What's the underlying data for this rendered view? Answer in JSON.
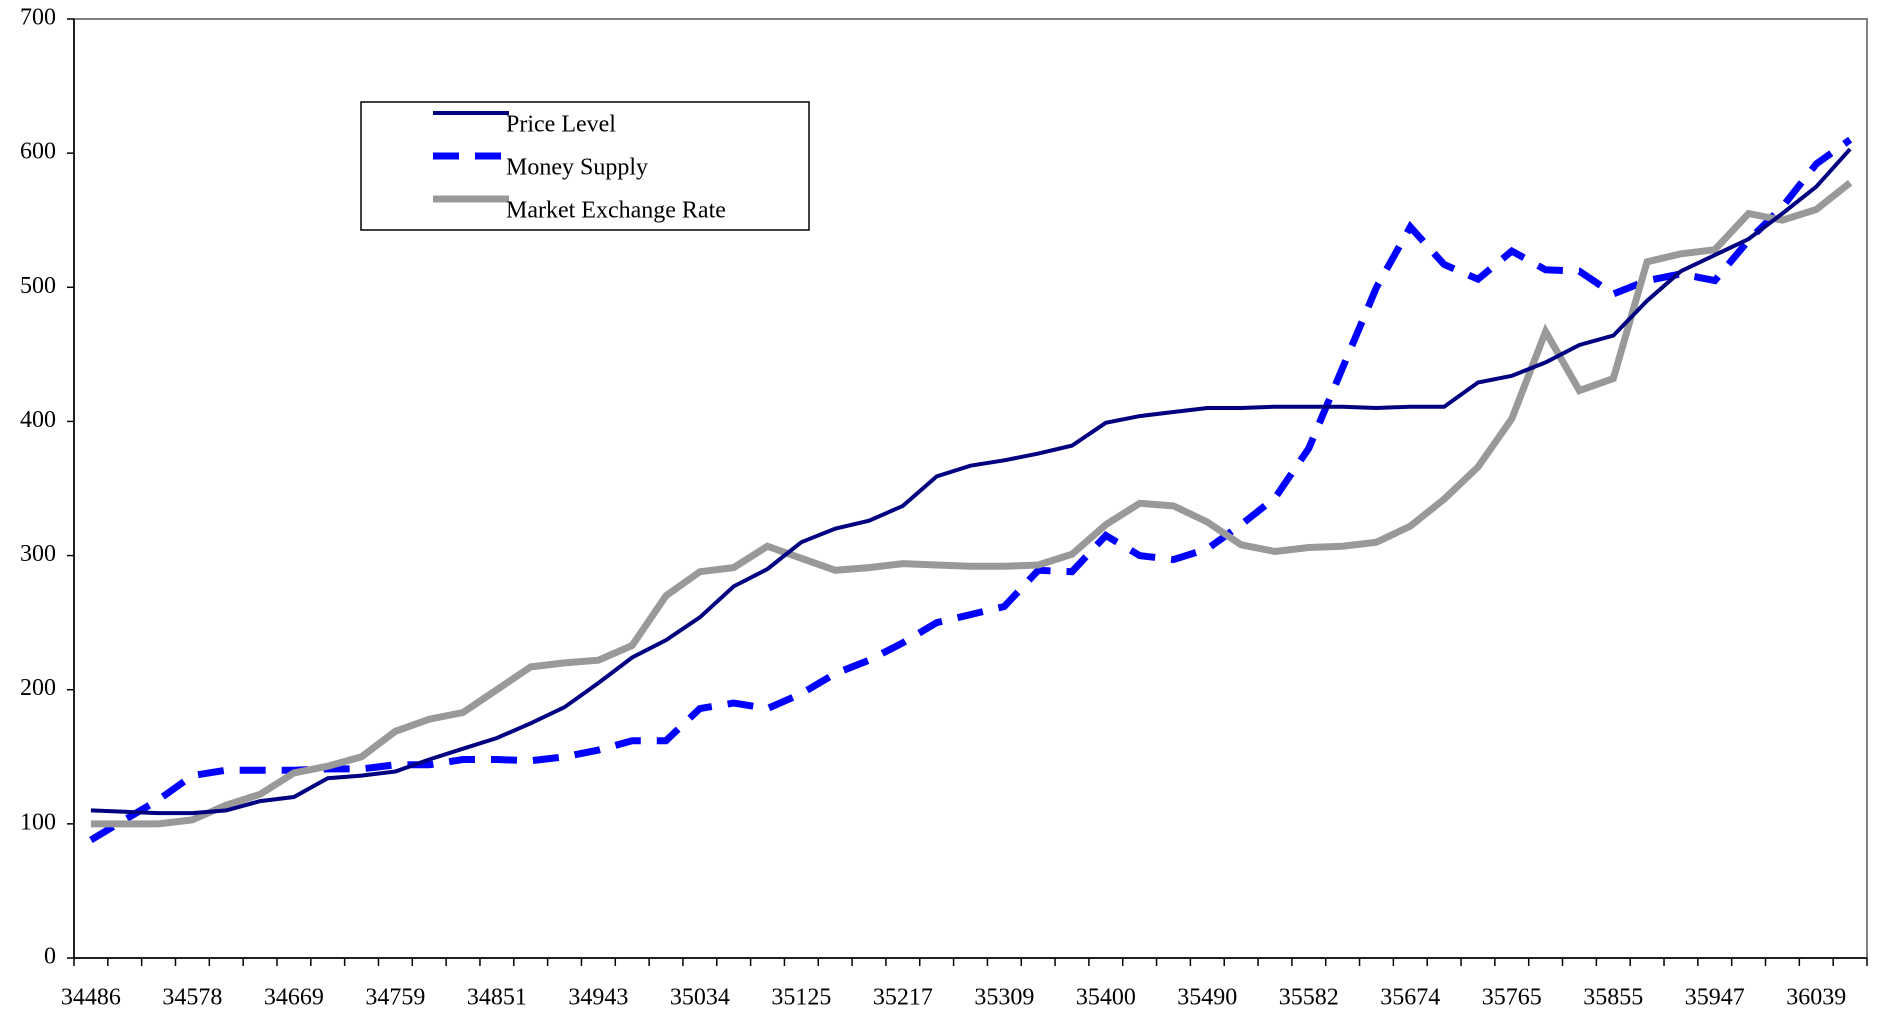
{
  "chart_data": {
    "type": "line",
    "categories": [
      "34486",
      null,
      null,
      "34578",
      null,
      null,
      "34669",
      null,
      null,
      "34759",
      null,
      null,
      "34851",
      null,
      null,
      "34943",
      null,
      null,
      "35034",
      null,
      null,
      "35125",
      null,
      null,
      "35217",
      null,
      null,
      "35309",
      null,
      null,
      "35400",
      null,
      null,
      "35490",
      null,
      null,
      "35582",
      null,
      null,
      "35674",
      null,
      null,
      "35765",
      null,
      null,
      "35855",
      null,
      null,
      "35947",
      null,
      null,
      "36039",
      null
    ],
    "series": [
      {
        "name": "Price Level",
        "color": "#000080",
        "style": "solid",
        "values": [
          110,
          109,
          108,
          108,
          110,
          117,
          120,
          134,
          136,
          139,
          148,
          156,
          164,
          175,
          187,
          205,
          224,
          237,
          254,
          277,
          290,
          310,
          320,
          326,
          337,
          359,
          367,
          371,
          376,
          382,
          399,
          404,
          407,
          410,
          410,
          411,
          411,
          411,
          410,
          411,
          411,
          429,
          434,
          444,
          457,
          464,
          490,
          512,
          524,
          536,
          555,
          575,
          603
        ]
      },
      {
        "name": "Money Supply",
        "color": "#0000ff",
        "style": "dashed",
        "values": [
          88,
          103,
          118,
          136,
          140,
          140,
          140,
          141,
          141,
          144,
          144,
          148,
          148,
          147,
          150,
          155,
          162,
          162,
          186,
          190,
          186,
          197,
          212,
          222,
          235,
          250,
          256,
          262,
          289,
          288,
          315,
          300,
          297,
          305,
          323,
          343,
          380,
          440,
          500,
          545,
          517,
          506,
          527,
          513,
          512,
          495,
          505,
          510,
          505,
          535,
          560,
          592,
          610
        ]
      },
      {
        "name": "Market Exchange Rate",
        "color": "#999999",
        "style": "solid",
        "values": [
          100,
          100,
          100,
          103,
          114,
          122,
          138,
          143,
          150,
          169,
          178,
          183,
          200,
          217,
          220,
          222,
          233,
          270,
          288,
          291,
          307,
          298,
          289,
          291,
          294,
          293,
          292,
          292,
          293,
          301,
          323,
          339,
          337,
          325,
          308,
          303,
          306,
          307,
          310,
          322,
          342,
          366,
          402,
          467,
          423,
          432,
          519,
          525,
          528,
          555,
          550,
          558,
          578
        ]
      }
    ],
    "ylim": [
      0,
      700
    ],
    "yticks": [
      0,
      100,
      200,
      300,
      400,
      500,
      600,
      700
    ],
    "grid": false,
    "legend": "upper-left"
  }
}
